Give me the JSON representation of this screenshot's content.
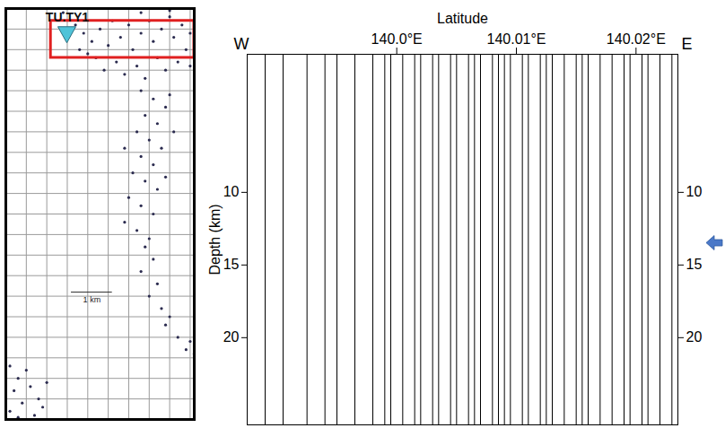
{
  "chart_data": [
    {
      "type": "scatter",
      "x": [
        1.7,
        1.9,
        2.1,
        2.3,
        2.5,
        2.6,
        2.8,
        3.0,
        3.1,
        3.3,
        3.5,
        3.6,
        3.8,
        4.0,
        4.1,
        4.3,
        4.4,
        4.5,
        2.2,
        2.7,
        3.2,
        3.7,
        4.2,
        2.0,
        2.9,
        3.4,
        3.9,
        4.5,
        1.8,
        2.4,
        4.0,
        3.3,
        2.6,
        1.3,
        1.4,
        3.3,
        3.6,
        3.9,
        3.4,
        3.7,
        3.2,
        3.5,
        3.8,
        3.3,
        3.6,
        3.1,
        3.4,
        3.7,
        3.0,
        3.3,
        3.6,
        2.9,
        3.2,
        3.5,
        4.0,
        4.1,
        2.9,
        3.9,
        3.4,
        3.6,
        3.3,
        3.7,
        3.5,
        3.8,
        3.9,
        4.2,
        4.5,
        4.6,
        4.4,
        4.0,
        0.1,
        0.3,
        0.5,
        0.2,
        0.6,
        0.8,
        0.4,
        0.1,
        0.7,
        0.9,
        0.3,
        1.0
      ],
      "y": [
        9.6,
        9.4,
        9.2,
        9.5,
        9.1,
        9.7,
        9.3,
        9.6,
        9.0,
        9.4,
        9.7,
        9.2,
        9.5,
        9.8,
        9.3,
        9.6,
        9.0,
        9.4,
        8.8,
        8.7,
        8.6,
        8.8,
        8.7,
        8.9,
        8.4,
        8.3,
        8.5,
        8.6,
        9.0,
        8.5,
        9.95,
        9.9,
        10.0,
        10.0,
        9.9,
        8.0,
        7.8,
        7.6,
        7.4,
        7.2,
        7.0,
        6.8,
        6.6,
        6.4,
        6.2,
        6.0,
        5.8,
        5.6,
        5.4,
        5.2,
        5.0,
        4.8,
        4.6,
        4.4,
        7.9,
        7.0,
        6.6,
        5.9,
        4.2,
        3.9,
        3.6,
        3.3,
        3.0,
        2.7,
        2.3,
        2.0,
        1.9,
        1.6,
        1.7,
        2.5,
        1.3,
        1.0,
        1.2,
        0.7,
        0.8,
        0.5,
        0.4,
        0.2,
        0.1,
        0.3,
        0.05,
        0.9
      ],
      "color": "#2b2b4f",
      "marker": "circle",
      "xlim": [
        0,
        4.6
      ],
      "ylim": [
        0,
        10
      ],
      "xticks": [
        0,
        0.5,
        1,
        1.5,
        2,
        2.5,
        3,
        3.5,
        4,
        4.5
      ],
      "yticks": [
        0,
        0.5,
        1,
        1.5,
        2,
        2.5,
        3,
        3.5,
        4,
        4.5,
        5,
        5.5,
        6,
        6.5,
        7,
        7.5,
        8,
        8.5,
        9,
        9.5,
        10
      ],
      "grid": true,
      "tick_labels": false,
      "station": {
        "label": "TU.TY1",
        "x": 1.5,
        "y": 9.35,
        "color": "#4fc3d8"
      },
      "box": {
        "x": [
          1.1,
          4.6
        ],
        "y": [
          8.8,
          9.7
        ],
        "color": "#e02020"
      },
      "scale_bar": {
        "label": "1 km",
        "length": 1,
        "x": 1.6,
        "y": 3.1
      }
    },
    {
      "type": "seismic_section",
      "x_label": "Latitude",
      "y_label": "Depth (km)",
      "west_label": "W",
      "east_label": "E",
      "x": [
        139.989,
        139.9905,
        139.9925,
        139.994,
        139.995,
        139.9965,
        139.998,
        139.999,
        139.9995,
        140.0005,
        140.0015,
        140.002,
        140.003,
        140.0035,
        140.0045,
        140.005,
        140.006,
        140.0065,
        140.007,
        140.008,
        140.0085,
        140.009,
        140.0095,
        140.0105,
        140.011,
        140.012,
        140.0125,
        140.013,
        140.014,
        140.015,
        140.0155,
        140.016,
        140.017,
        140.018,
        140.019,
        140.0195,
        140.0205,
        140.021,
        140.022,
        140.023
      ],
      "color": "#000000",
      "xlim": [
        139.9875,
        140.0235
      ],
      "xticks": [
        {
          "value": 140.0,
          "label": "140.0°E"
        },
        {
          "value": 140.01,
          "label": "140.01°E"
        },
        {
          "value": 140.02,
          "label": "140.02°E"
        }
      ],
      "ylim": [
        0.5,
        26
      ],
      "yticks": [
        10,
        15,
        20
      ],
      "arrow_depth": 13.5,
      "arrow_color": "#4a78c8"
    }
  ]
}
